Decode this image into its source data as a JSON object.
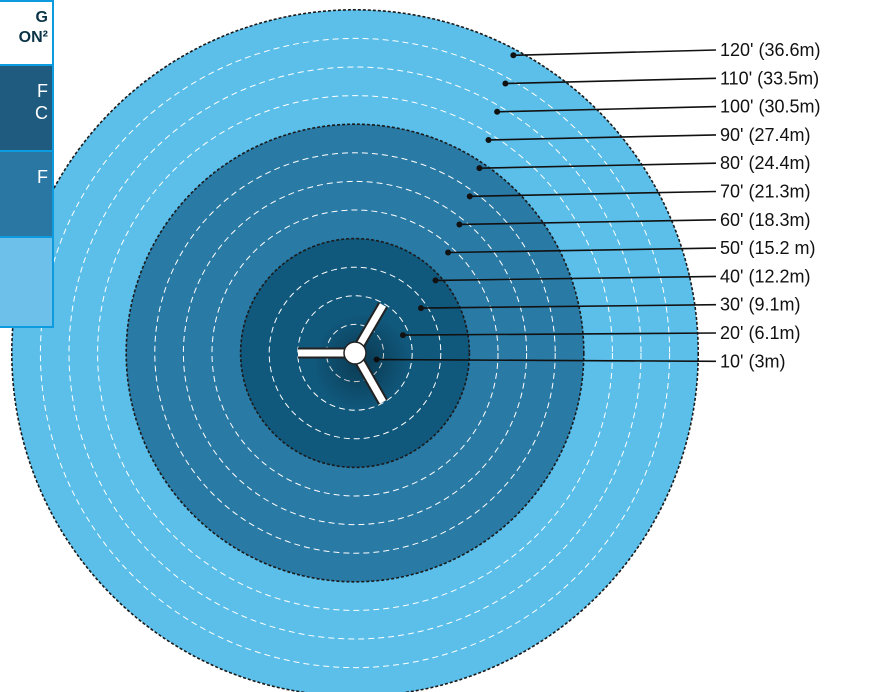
{
  "legend": {
    "header_line1": "G",
    "header_line2": "ON²",
    "rows": [
      {
        "line1": "F",
        "line2": "C"
      },
      {
        "line1": "F",
        "line2": ""
      },
      {
        "line1": "",
        "line2": ""
      }
    ]
  },
  "distances": [
    {
      "feet": 120,
      "label": "120' (36.6m)"
    },
    {
      "feet": 110,
      "label": "110' (33.5m)"
    },
    {
      "feet": 100,
      "label": "100' (30.5m)"
    },
    {
      "feet": 90,
      "label": "90' (27.4m)"
    },
    {
      "feet": 80,
      "label": "80' (24.4m)"
    },
    {
      "feet": 70,
      "label": "70' (21.3m)"
    },
    {
      "feet": 60,
      "label": "60' (18.3m)"
    },
    {
      "feet": 50,
      "label": "50' (15.2 m)"
    },
    {
      "feet": 40,
      "label": "40' (12.2m)"
    },
    {
      "feet": 30,
      "label": "30' (9.1m)"
    },
    {
      "feet": 20,
      "label": "20' (6.1m)"
    },
    {
      "feet": 10,
      "label": "10' (3m)"
    }
  ],
  "zones": [
    {
      "outer_feet": 120,
      "color": "#5bbfea"
    },
    {
      "outer_feet": 80,
      "color": "#2a7aa6"
    },
    {
      "outer_feet": 40,
      "color": "#10587c"
    }
  ],
  "colors": {
    "ring_dashes": "#ffffff",
    "zone_border": "#1a1a1a",
    "leader_line": "#111111",
    "turbine": "#ffffff"
  },
  "icon": "wind-turbine-icon"
}
